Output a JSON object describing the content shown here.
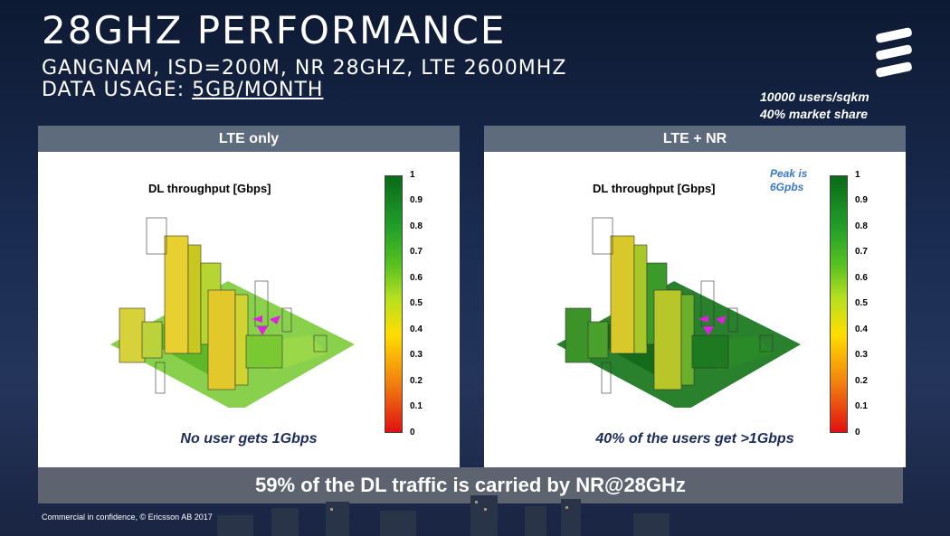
{
  "title": "28GHZ PERFORMANCE",
  "subtitle": "GANGNAM, ISD=200M, NR 28GHZ, LTE 2600MHZ",
  "usage_label": "DATA USAGE: ",
  "usage_value": "5GB/MONTH",
  "stats": {
    "users": "10000 users/sqkm",
    "share": "40% market share"
  },
  "panels": [
    {
      "header": "LTE only",
      "plot_title": "DL throughput [Gbps]",
      "caption": "No user gets 1Gbps"
    },
    {
      "header": "LTE + NR",
      "plot_title": "DL throughput [Gbps]",
      "caption": "40% of the users get >1Gbps",
      "peak": "Peak is 6Gpbs"
    }
  ],
  "colorbar_ticks": [
    "1",
    "0.9",
    "0.8",
    "0.7",
    "0.6",
    "0.5",
    "0.4",
    "0.3",
    "0.2",
    "0.1",
    "0"
  ],
  "banner": "59% of the DL traffic is carried by NR@28GHz",
  "footer": "Commercial in confidence,  © Ericsson AB 2017",
  "colors": {
    "header_bar": "#5d6b7d",
    "banner": "#5d6470",
    "caption": "#1c2c5a",
    "peak": "#3a78c8"
  },
  "icons": [
    "ericsson-logo-icon",
    "city-heatmap-image"
  ]
}
